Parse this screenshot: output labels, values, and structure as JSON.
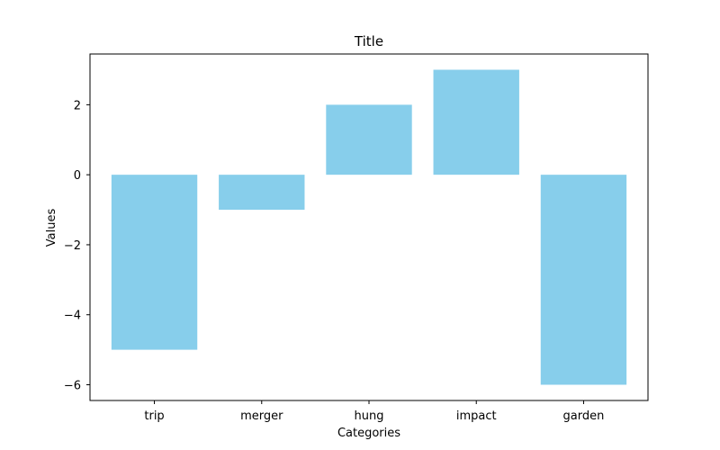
{
  "chart_data": {
    "type": "bar",
    "title": "Title",
    "xlabel": "Categories",
    "ylabel": "Values",
    "categories": [
      "trip",
      "merger",
      "hung",
      "impact",
      "garden"
    ],
    "values": [
      -5,
      -1,
      2,
      3,
      -6
    ],
    "ylim": [
      -6.45,
      3.45
    ],
    "yticks": [
      -6,
      -4,
      -2,
      0,
      2
    ],
    "ytick_labels": [
      "−6",
      "−4",
      "−2",
      "0",
      "2"
    ],
    "bar_color": "#87CEEB",
    "grid": false,
    "legend": "none"
  }
}
